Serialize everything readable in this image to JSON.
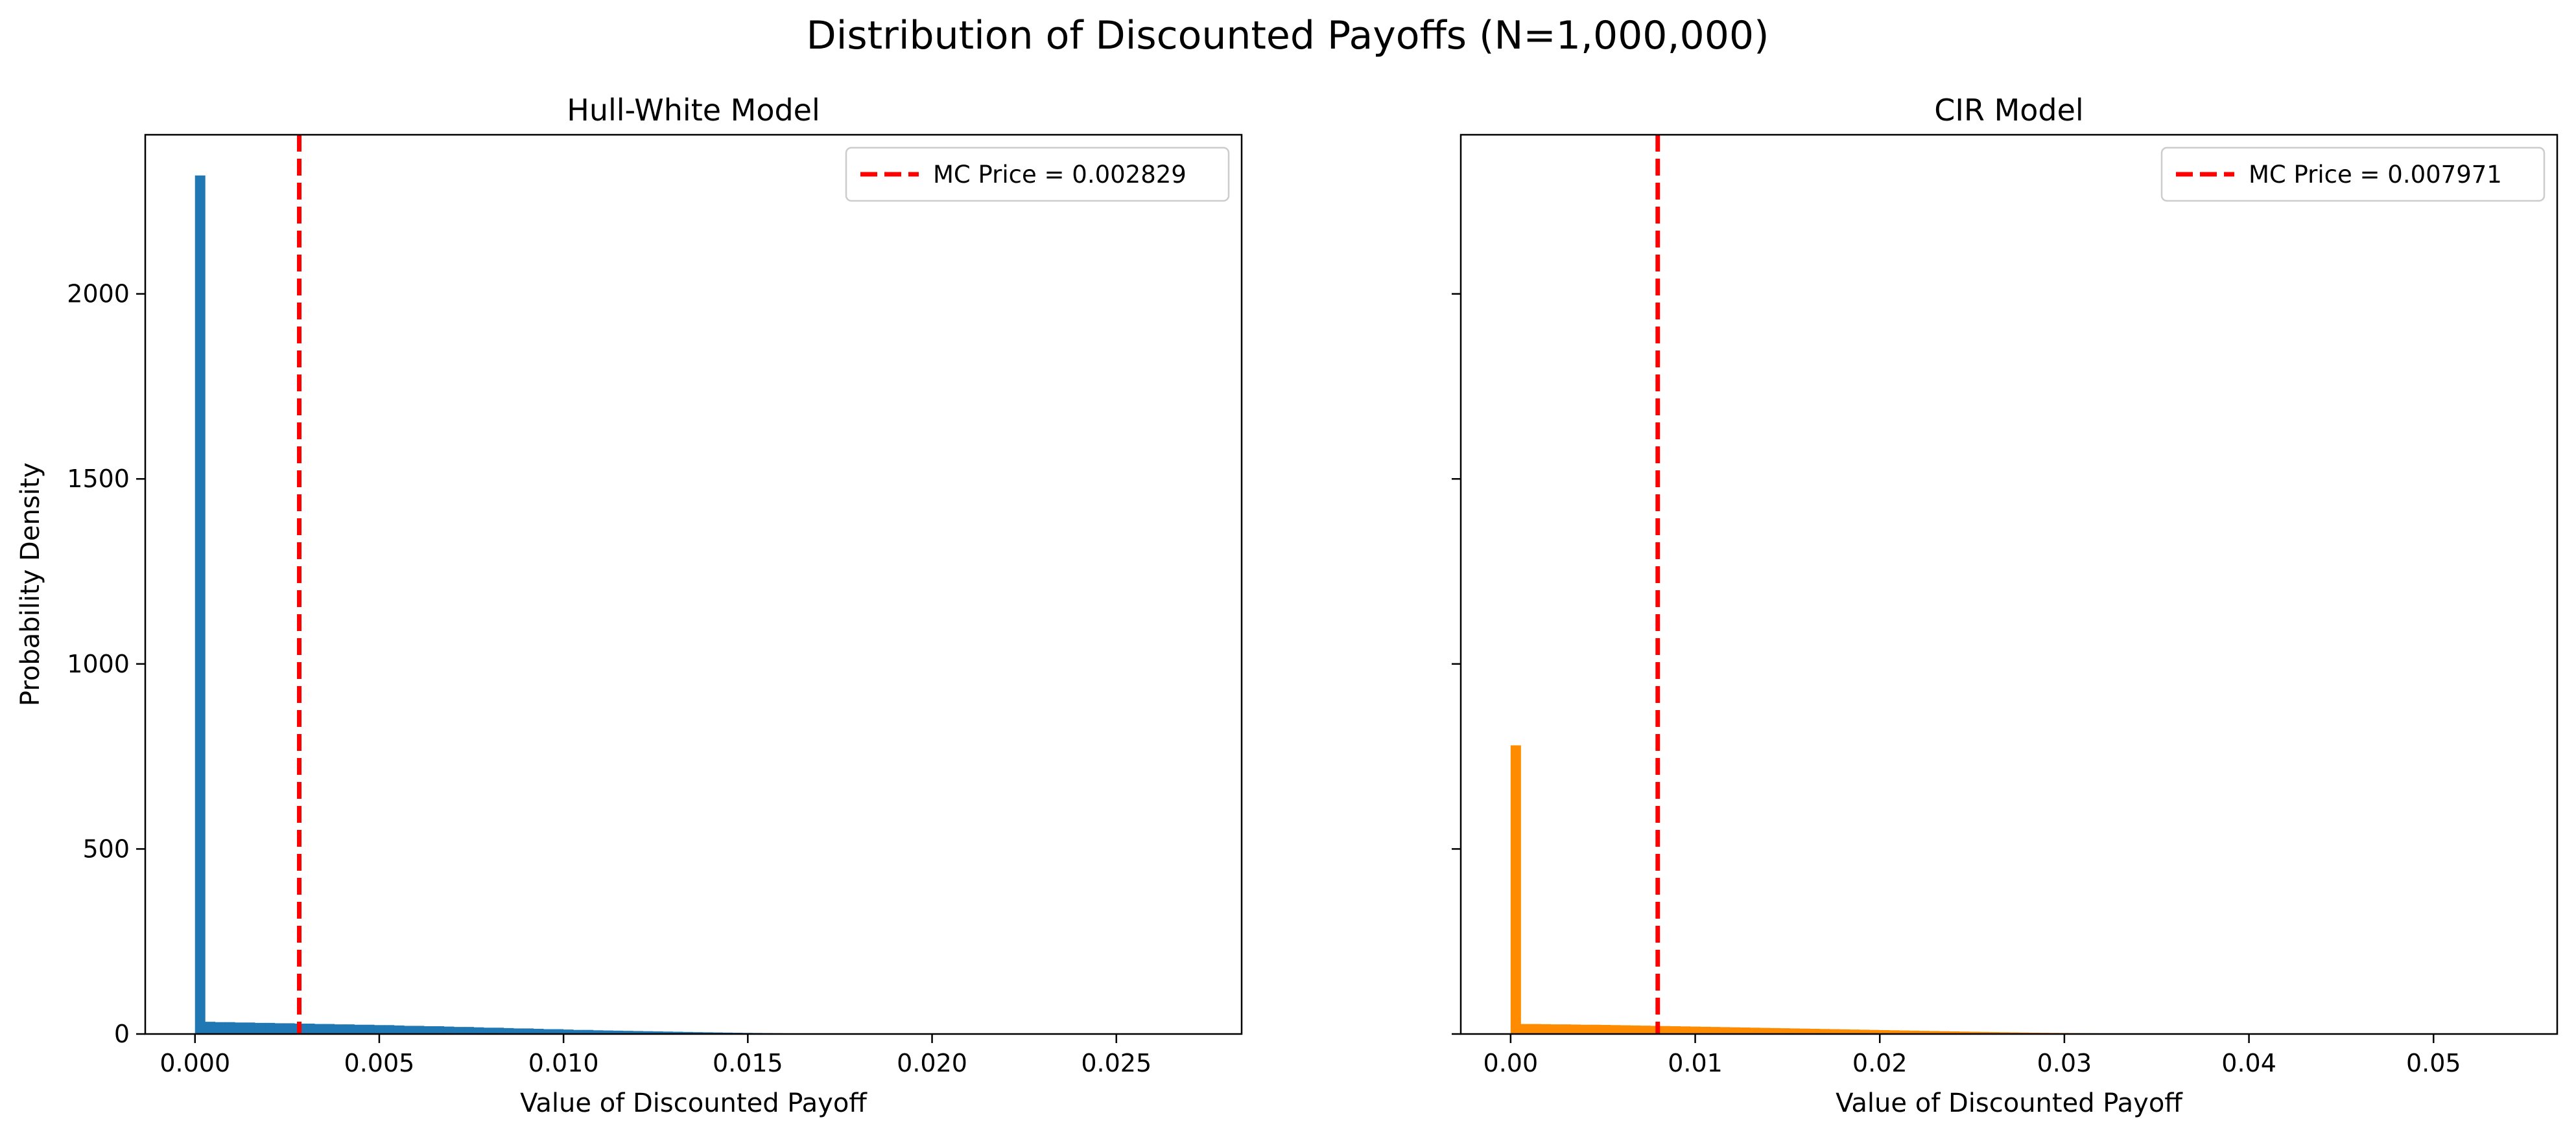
{
  "figure": {
    "title": "Distribution of Discounted Payoffs (N=1,000,000)"
  },
  "chart_data": [
    {
      "type": "bar",
      "title": "Hull-White Model",
      "xlabel": "Value of Discounted Payoff",
      "ylabel": "Probability Density",
      "xlim": [
        -0.00135,
        0.0284
      ],
      "ylim": [
        0,
        2430
      ],
      "xticks": [
        0.0,
        0.005,
        0.01,
        0.015,
        0.02,
        0.025
      ],
      "xtick_labels": [
        "0.000",
        "0.005",
        "0.010",
        "0.015",
        "0.020",
        "0.025"
      ],
      "yticks": [
        0,
        500,
        1000,
        1500,
        2000
      ],
      "ytick_labels": [
        "0",
        "500",
        "1000",
        "1500",
        "2000"
      ],
      "bin_width": 0.00027,
      "bins": [
        {
          "x": 0.0,
          "y": 2320
        },
        {
          "x": 0.00027,
          "y": 33
        },
        {
          "x": 0.00054,
          "y": 32
        },
        {
          "x": 0.00081,
          "y": 32
        },
        {
          "x": 0.00108,
          "y": 31
        },
        {
          "x": 0.00135,
          "y": 31
        },
        {
          "x": 0.00162,
          "y": 30
        },
        {
          "x": 0.00189,
          "y": 30
        },
        {
          "x": 0.00216,
          "y": 29
        },
        {
          "x": 0.00243,
          "y": 29
        },
        {
          "x": 0.0027,
          "y": 28
        },
        {
          "x": 0.00297,
          "y": 28
        },
        {
          "x": 0.00324,
          "y": 27
        },
        {
          "x": 0.00351,
          "y": 27
        },
        {
          "x": 0.00378,
          "y": 26
        },
        {
          "x": 0.00405,
          "y": 26
        },
        {
          "x": 0.00432,
          "y": 25
        },
        {
          "x": 0.00459,
          "y": 25
        },
        {
          "x": 0.00486,
          "y": 24
        },
        {
          "x": 0.00513,
          "y": 24
        },
        {
          "x": 0.0054,
          "y": 23
        },
        {
          "x": 0.00567,
          "y": 22
        },
        {
          "x": 0.00594,
          "y": 22
        },
        {
          "x": 0.00621,
          "y": 21
        },
        {
          "x": 0.00648,
          "y": 21
        },
        {
          "x": 0.00675,
          "y": 20
        },
        {
          "x": 0.00702,
          "y": 19
        },
        {
          "x": 0.00729,
          "y": 19
        },
        {
          "x": 0.00756,
          "y": 18
        },
        {
          "x": 0.00783,
          "y": 17
        },
        {
          "x": 0.0081,
          "y": 17
        },
        {
          "x": 0.00837,
          "y": 16
        },
        {
          "x": 0.00864,
          "y": 15
        },
        {
          "x": 0.00891,
          "y": 15
        },
        {
          "x": 0.00918,
          "y": 14
        },
        {
          "x": 0.00945,
          "y": 13
        },
        {
          "x": 0.00972,
          "y": 13
        },
        {
          "x": 0.00999,
          "y": 12
        },
        {
          "x": 0.01026,
          "y": 11
        },
        {
          "x": 0.01053,
          "y": 11
        },
        {
          "x": 0.0108,
          "y": 10
        },
        {
          "x": 0.01107,
          "y": 9.5
        },
        {
          "x": 0.01134,
          "y": 9
        },
        {
          "x": 0.01161,
          "y": 8.5
        },
        {
          "x": 0.01188,
          "y": 8
        },
        {
          "x": 0.01215,
          "y": 7.5
        },
        {
          "x": 0.01242,
          "y": 7
        },
        {
          "x": 0.01269,
          "y": 6.5
        },
        {
          "x": 0.01296,
          "y": 6
        },
        {
          "x": 0.01323,
          "y": 5.5
        },
        {
          "x": 0.0135,
          "y": 5
        },
        {
          "x": 0.01377,
          "y": 4.6
        },
        {
          "x": 0.01404,
          "y": 4.2
        },
        {
          "x": 0.01431,
          "y": 3.8
        },
        {
          "x": 0.01458,
          "y": 3.4
        },
        {
          "x": 0.01485,
          "y": 3
        },
        {
          "x": 0.01512,
          "y": 2.7
        },
        {
          "x": 0.01539,
          "y": 2.4
        },
        {
          "x": 0.01566,
          "y": 2.1
        },
        {
          "x": 0.01593,
          "y": 1.8
        },
        {
          "x": 0.0162,
          "y": 1.6
        },
        {
          "x": 0.01647,
          "y": 1.4
        },
        {
          "x": 0.01674,
          "y": 1.2
        },
        {
          "x": 0.01701,
          "y": 1
        },
        {
          "x": 0.01728,
          "y": 0.9
        },
        {
          "x": 0.01755,
          "y": 0.8
        },
        {
          "x": 0.01782,
          "y": 0.7
        },
        {
          "x": 0.01809,
          "y": 0.6
        },
        {
          "x": 0.01836,
          "y": 0.5
        },
        {
          "x": 0.01863,
          "y": 0.45
        },
        {
          "x": 0.0189,
          "y": 0.4
        },
        {
          "x": 0.01917,
          "y": 0.35
        },
        {
          "x": 0.01944,
          "y": 0.3
        },
        {
          "x": 0.01971,
          "y": 0.25
        },
        {
          "x": 0.01998,
          "y": 0.2
        },
        {
          "x": 0.02025,
          "y": 0.18
        },
        {
          "x": 0.02052,
          "y": 0.15
        },
        {
          "x": 0.02079,
          "y": 0.12
        },
        {
          "x": 0.02106,
          "y": 0.1
        },
        {
          "x": 0.0216,
          "y": 0.08
        },
        {
          "x": 0.02214,
          "y": 0.06
        },
        {
          "x": 0.02268,
          "y": 0.04
        },
        {
          "x": 0.02322,
          "y": 0.03
        },
        {
          "x": 0.02376,
          "y": 0.02
        },
        {
          "x": 0.0243,
          "y": 0.02
        },
        {
          "x": 0.02484,
          "y": 0.01
        },
        {
          "x": 0.02538,
          "y": 0.01
        },
        {
          "x": 0.02592,
          "y": 0.01
        },
        {
          "x": 0.02646,
          "y": 0.01
        }
      ],
      "bar_color": "#1f77b4",
      "vline": {
        "x": 0.002829,
        "color": "#ff0000",
        "label": "MC Price = 0.002829"
      },
      "legend": "upper-right",
      "grid": false
    },
    {
      "type": "bar",
      "title": "CIR Model",
      "xlabel": "Value of Discounted Payoff",
      "ylabel": "",
      "xlim": [
        -0.0027,
        0.0567
      ],
      "ylim": [
        0,
        2430
      ],
      "xticks": [
        0.0,
        0.01,
        0.02,
        0.03,
        0.04,
        0.05
      ],
      "xtick_labels": [
        "0.00",
        "0.01",
        "0.02",
        "0.03",
        "0.04",
        "0.05"
      ],
      "yticks": [
        0,
        500,
        1000,
        1500,
        2000
      ],
      "ytick_labels": [
        "",
        "",
        "",
        "",
        ""
      ],
      "bin_width": 0.00054,
      "bins": [
        {
          "x": 0.0,
          "y": 780
        },
        {
          "x": 0.00054,
          "y": 27
        },
        {
          "x": 0.00108,
          "y": 27
        },
        {
          "x": 0.00162,
          "y": 26.5
        },
        {
          "x": 0.00216,
          "y": 26
        },
        {
          "x": 0.0027,
          "y": 26
        },
        {
          "x": 0.00324,
          "y": 25.5
        },
        {
          "x": 0.00378,
          "y": 25
        },
        {
          "x": 0.00432,
          "y": 25
        },
        {
          "x": 0.00486,
          "y": 24.5
        },
        {
          "x": 0.0054,
          "y": 24
        },
        {
          "x": 0.00594,
          "y": 23.5
        },
        {
          "x": 0.00648,
          "y": 23
        },
        {
          "x": 0.00702,
          "y": 22.5
        },
        {
          "x": 0.00756,
          "y": 22
        },
        {
          "x": 0.0081,
          "y": 21.5
        },
        {
          "x": 0.00864,
          "y": 21
        },
        {
          "x": 0.00918,
          "y": 20.5
        },
        {
          "x": 0.00972,
          "y": 20
        },
        {
          "x": 0.01026,
          "y": 19.5
        },
        {
          "x": 0.0108,
          "y": 19
        },
        {
          "x": 0.01134,
          "y": 18.5
        },
        {
          "x": 0.01188,
          "y": 18
        },
        {
          "x": 0.01242,
          "y": 17.5
        },
        {
          "x": 0.01296,
          "y": 17
        },
        {
          "x": 0.0135,
          "y": 16.5
        },
        {
          "x": 0.01404,
          "y": 16
        },
        {
          "x": 0.01458,
          "y": 15.5
        },
        {
          "x": 0.01512,
          "y": 15
        },
        {
          "x": 0.01566,
          "y": 14.5
        },
        {
          "x": 0.0162,
          "y": 14
        },
        {
          "x": 0.01674,
          "y": 13.5
        },
        {
          "x": 0.01728,
          "y": 13
        },
        {
          "x": 0.01782,
          "y": 12.5
        },
        {
          "x": 0.01836,
          "y": 12
        },
        {
          "x": 0.0189,
          "y": 11.5
        },
        {
          "x": 0.01944,
          "y": 11
        },
        {
          "x": 0.01998,
          "y": 10.5
        },
        {
          "x": 0.02052,
          "y": 10
        },
        {
          "x": 0.02106,
          "y": 9.5
        },
        {
          "x": 0.0216,
          "y": 9
        },
        {
          "x": 0.02214,
          "y": 8.5
        },
        {
          "x": 0.02268,
          "y": 8
        },
        {
          "x": 0.02322,
          "y": 7.5
        },
        {
          "x": 0.02376,
          "y": 7
        },
        {
          "x": 0.0243,
          "y": 6.5
        },
        {
          "x": 0.02484,
          "y": 6
        },
        {
          "x": 0.02538,
          "y": 5.6
        },
        {
          "x": 0.02592,
          "y": 5.2
        },
        {
          "x": 0.02646,
          "y": 4.8
        },
        {
          "x": 0.027,
          "y": 4.4
        },
        {
          "x": 0.02754,
          "y": 4
        },
        {
          "x": 0.02808,
          "y": 3.6
        },
        {
          "x": 0.02862,
          "y": 3.3
        },
        {
          "x": 0.02916,
          "y": 3
        },
        {
          "x": 0.0297,
          "y": 2.7
        },
        {
          "x": 0.03024,
          "y": 2.4
        },
        {
          "x": 0.03078,
          "y": 2.1
        },
        {
          "x": 0.03132,
          "y": 1.9
        },
        {
          "x": 0.03186,
          "y": 1.7
        },
        {
          "x": 0.0324,
          "y": 1.5
        },
        {
          "x": 0.03294,
          "y": 1.3
        },
        {
          "x": 0.03348,
          "y": 1.1
        },
        {
          "x": 0.03402,
          "y": 1
        },
        {
          "x": 0.03456,
          "y": 0.9
        },
        {
          "x": 0.0351,
          "y": 0.8
        },
        {
          "x": 0.03564,
          "y": 0.7
        },
        {
          "x": 0.03618,
          "y": 0.6
        },
        {
          "x": 0.03672,
          "y": 0.5
        },
        {
          "x": 0.03726,
          "y": 0.45
        },
        {
          "x": 0.0378,
          "y": 0.4
        },
        {
          "x": 0.03834,
          "y": 0.35
        },
        {
          "x": 0.03888,
          "y": 0.3
        },
        {
          "x": 0.03942,
          "y": 0.25
        },
        {
          "x": 0.03996,
          "y": 0.2
        },
        {
          "x": 0.04104,
          "y": 0.15
        },
        {
          "x": 0.04212,
          "y": 0.12
        },
        {
          "x": 0.0432,
          "y": 0.1
        },
        {
          "x": 0.04428,
          "y": 0.08
        },
        {
          "x": 0.04536,
          "y": 0.06
        },
        {
          "x": 0.04644,
          "y": 0.05
        },
        {
          "x": 0.04752,
          "y": 0.04
        },
        {
          "x": 0.0486,
          "y": 0.03
        },
        {
          "x": 0.04968,
          "y": 0.02
        },
        {
          "x": 0.05076,
          "y": 0.02
        },
        {
          "x": 0.05184,
          "y": 0.01
        },
        {
          "x": 0.05292,
          "y": 0.01
        }
      ],
      "bar_color": "#ff8c00",
      "vline": {
        "x": 0.007971,
        "color": "#ff0000",
        "label": "MC Price = 0.007971"
      },
      "legend": "upper-right",
      "grid": false
    }
  ]
}
